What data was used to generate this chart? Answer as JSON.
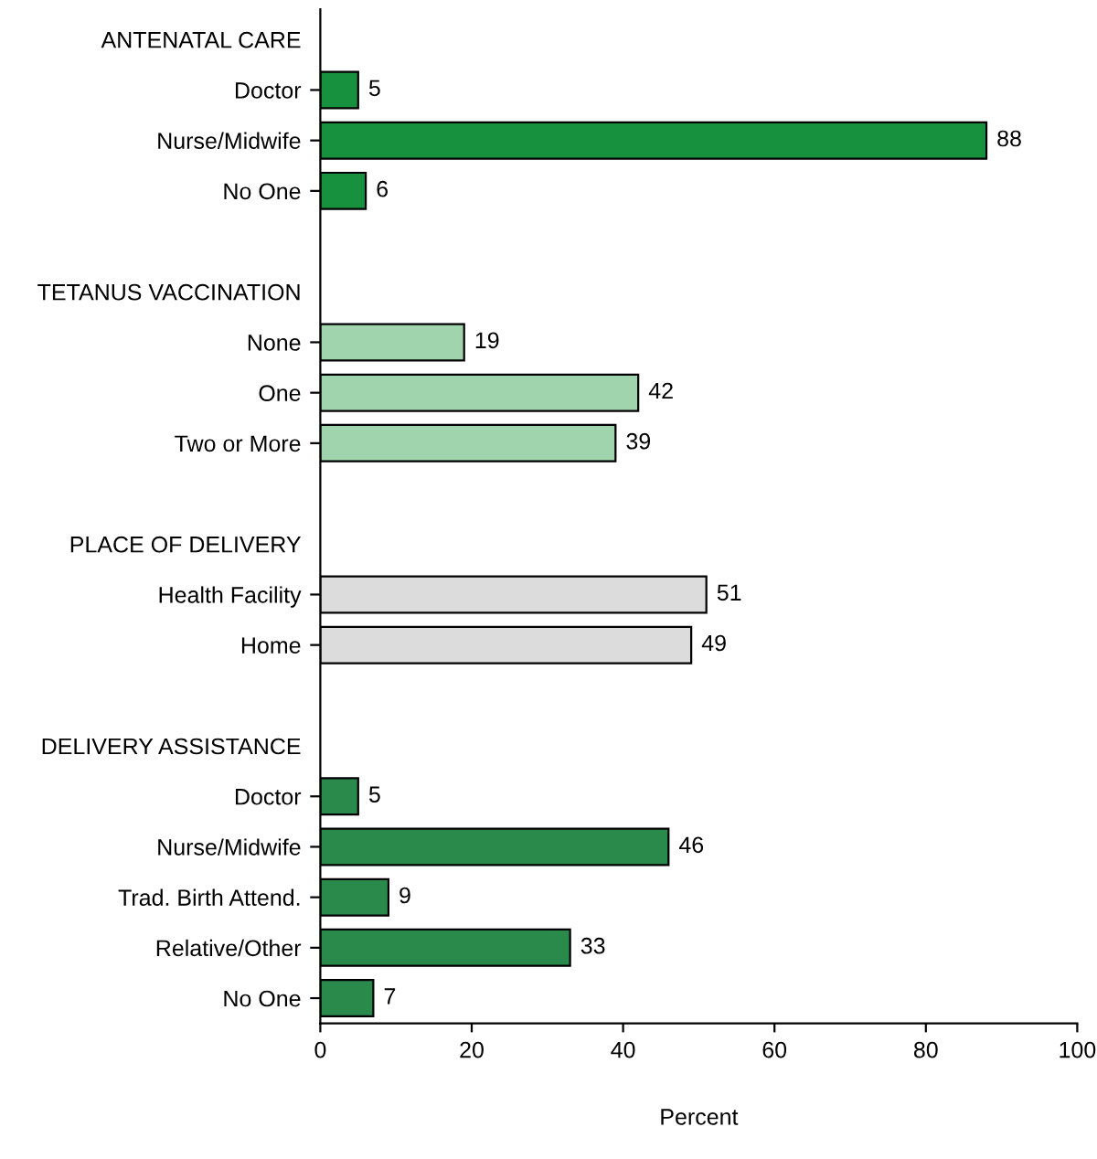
{
  "chart_data": {
    "type": "bar",
    "orientation": "horizontal",
    "xlabel": "Percent",
    "categories": [
      "ANTENATAL CARE",
      "Doctor",
      "Nurse/Midwife",
      "No One",
      null,
      "TETANUS VACCINATION",
      "None",
      "One",
      "Two or More",
      null,
      "PLACE OF DELIVERY",
      "Health Facility",
      "Home",
      null,
      "DELIVERY ASSISTANCE",
      "Doctor",
      "Nurse/Midwife",
      "Trad. Birth Attend.",
      "Relative/Other",
      "No One"
    ],
    "values": [
      null,
      5,
      88,
      6,
      null,
      null,
      19,
      42,
      39,
      null,
      null,
      51,
      49,
      null,
      null,
      5,
      46,
      9,
      33,
      7
    ],
    "colors": [
      null,
      "#18913f",
      "#18913f",
      "#18913f",
      null,
      null,
      "#9fd4ac",
      "#9fd4ac",
      "#9fd4ac",
      null,
      null,
      "#dcdcdc",
      "#dcdcdc",
      null,
      null,
      "#2a8a4c",
      "#2a8a4c",
      "#2a8a4c",
      "#2a8a4c",
      "#2a8a4c"
    ],
    "xlim": [
      0,
      100
    ],
    "xticks": [
      0,
      20,
      40,
      60,
      80,
      100
    ],
    "data_labels": true,
    "grid": false
  }
}
